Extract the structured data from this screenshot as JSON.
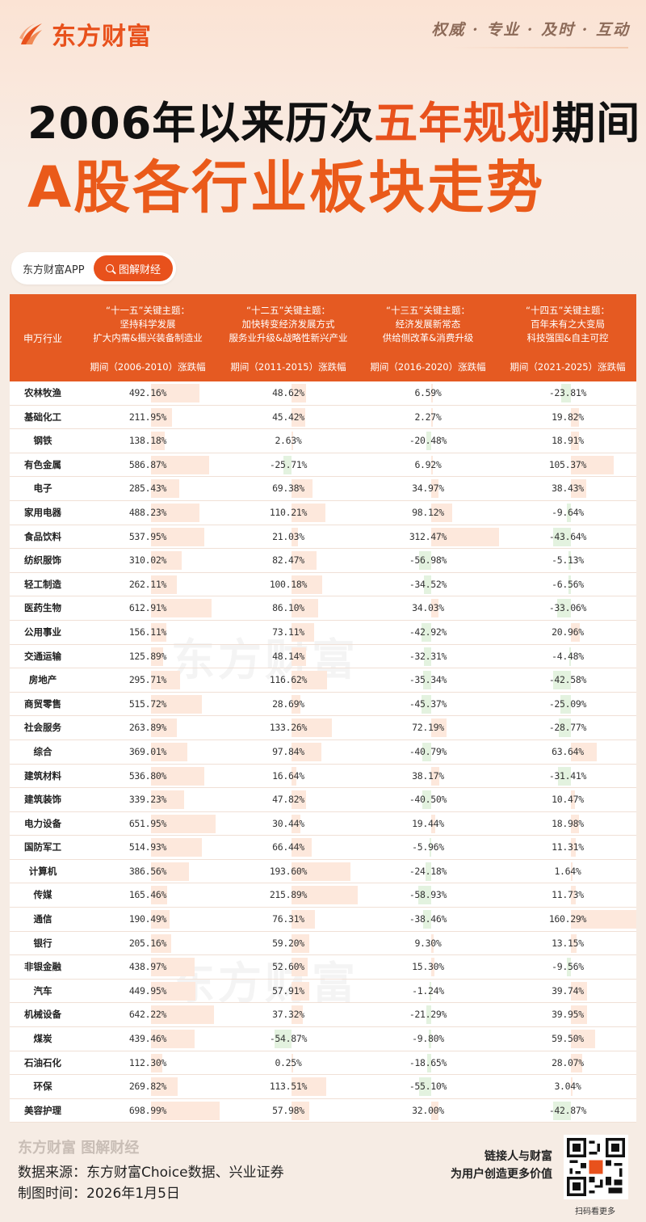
{
  "brand": {
    "name": "东方财富",
    "slogan": "权威 · 专业 · 及时 · 互动"
  },
  "title": {
    "line1_pre": "2006年以来历次",
    "line1_hl": "五年规划",
    "line1_post": "期间",
    "line2": "A股各行业板块走势"
  },
  "app": {
    "name": "东方财富APP",
    "tag": "图解财经"
  },
  "table": {
    "first_header": "申万行业",
    "plans": [
      {
        "theme1": "“十一五”关键主题：",
        "theme2": "坚持科学发展",
        "theme3": "扩大内需&振兴装备制造业",
        "period": "期间（2006-2010）涨跌幅"
      },
      {
        "theme1": "“十二五”关键主题：",
        "theme2": "加快转变经济发展方式",
        "theme3": "服务业升级&战略性新兴产业",
        "period": "期间（2011-2015）涨跌幅"
      },
      {
        "theme1": "“十三五”关键主题：",
        "theme2": "经济发展新常态",
        "theme3": "供给侧改革&消费升级",
        "period": "期间（2016-2020）涨跌幅"
      },
      {
        "theme1": "“十四五”关键主题：",
        "theme2": "百年未有之大变局",
        "theme3": "科技强国&自主可控",
        "period": "期间（2021-2025）涨跌幅"
      }
    ],
    "rows": [
      {
        "name": "农林牧渔",
        "v": [
          492.16,
          48.62,
          6.59,
          -23.81
        ],
        "t": [
          "492.16%",
          "48.62%",
          "6.59%",
          "-23.81%"
        ]
      },
      {
        "name": "基础化工",
        "v": [
          211.95,
          45.42,
          2.27,
          19.82
        ],
        "t": [
          "211.95%",
          "45.42%",
          "2.27%",
          "19.82%"
        ]
      },
      {
        "name": "钢铁",
        "v": [
          138.18,
          2.63,
          -20.48,
          18.91
        ],
        "t": [
          "138.18%",
          "2.63%",
          "-20.48%",
          "18.91%"
        ]
      },
      {
        "name": "有色金属",
        "v": [
          586.87,
          -25.71,
          6.92,
          105.37
        ],
        "t": [
          "586.87%",
          "-25.71%",
          "6.92%",
          "105.37%"
        ]
      },
      {
        "name": "电子",
        "v": [
          285.43,
          69.38,
          34.97,
          38.43
        ],
        "t": [
          "285.43%",
          "69.38%",
          "34.97%",
          "38.43%"
        ]
      },
      {
        "name": "家用电器",
        "v": [
          488.23,
          110.21,
          98.12,
          -9.64
        ],
        "t": [
          "488.23%",
          "110.21%",
          "98.12%",
          "-9.64%"
        ]
      },
      {
        "name": "食品饮料",
        "v": [
          537.95,
          21.03,
          312.47,
          -43.64
        ],
        "t": [
          "537.95%",
          "21.03%",
          "312.47%",
          "-43.64%"
        ]
      },
      {
        "name": "纺织服饰",
        "v": [
          310.02,
          82.47,
          -56.98,
          -5.13
        ],
        "t": [
          "310.02%",
          "82.47%",
          "-56.98%",
          "-5.13%"
        ]
      },
      {
        "name": "轻工制造",
        "v": [
          262.11,
          100.18,
          -34.52,
          -6.56
        ],
        "t": [
          "262.11%",
          "100.18%",
          "-34.52%",
          "-6.56%"
        ]
      },
      {
        "name": "医药生物",
        "v": [
          612.91,
          86.1,
          34.03,
          -33.06
        ],
        "t": [
          "612.91%",
          "86.10%",
          "34.03%",
          "-33.06%"
        ]
      },
      {
        "name": "公用事业",
        "v": [
          156.11,
          73.11,
          -42.92,
          20.96
        ],
        "t": [
          "156.11%",
          "73.11%",
          "-42.92%",
          "20.96%"
        ]
      },
      {
        "name": "交通运输",
        "v": [
          125.89,
          48.14,
          -32.31,
          -4.48
        ],
        "t": [
          "125.89%",
          "48.14%",
          "-32.31%",
          "-4.48%"
        ]
      },
      {
        "name": "房地产",
        "v": [
          295.71,
          116.62,
          -35.34,
          -42.58
        ],
        "t": [
          "295.71%",
          "116.62%",
          "-35.34%",
          "-42.58%"
        ]
      },
      {
        "name": "商贸零售",
        "v": [
          515.72,
          28.69,
          -45.37,
          -25.09
        ],
        "t": [
          "515.72%",
          "28.69%",
          "-45.37%",
          "-25.09%"
        ]
      },
      {
        "name": "社会服务",
        "v": [
          263.89,
          133.26,
          72.19,
          -28.77
        ],
        "t": [
          "263.89%",
          "133.26%",
          "72.19%",
          "-28.77%"
        ]
      },
      {
        "name": "综合",
        "v": [
          369.01,
          97.84,
          -40.79,
          63.64
        ],
        "t": [
          "369.01%",
          "97.84%",
          "-40.79%",
          "63.64%"
        ]
      },
      {
        "name": "建筑材料",
        "v": [
          536.8,
          16.64,
          38.17,
          -31.41
        ],
        "t": [
          "536.80%",
          "16.64%",
          "38.17%",
          "-31.41%"
        ]
      },
      {
        "name": "建筑装饰",
        "v": [
          339.23,
          47.82,
          -40.5,
          10.47
        ],
        "t": [
          "339.23%",
          "47.82%",
          "-40.50%",
          "10.47%"
        ]
      },
      {
        "name": "电力设备",
        "v": [
          651.95,
          30.44,
          19.44,
          18.98
        ],
        "t": [
          "651.95%",
          "30.44%",
          "19.44%",
          "18.98%"
        ]
      },
      {
        "name": "国防军工",
        "v": [
          514.93,
          66.44,
          -5.96,
          11.31
        ],
        "t": [
          "514.93%",
          "66.44%",
          "-5.96%",
          "11.31%"
        ]
      },
      {
        "name": "计算机",
        "v": [
          386.56,
          193.6,
          -24.18,
          1.64
        ],
        "t": [
          "386.56%",
          "193.60%",
          "-24.18%",
          "1.64%"
        ]
      },
      {
        "name": "传媒",
        "v": [
          165.46,
          215.89,
          -58.93,
          11.73
        ],
        "t": [
          "165.46%",
          "215.89%",
          "-58.93%",
          "11.73%"
        ]
      },
      {
        "name": "通信",
        "v": [
          190.49,
          76.31,
          -38.46,
          160.29
        ],
        "t": [
          "190.49%",
          "76.31%",
          "-38.46%",
          "160.29%"
        ]
      },
      {
        "name": "银行",
        "v": [
          205.16,
          59.2,
          9.3,
          13.15
        ],
        "t": [
          "205.16%",
          "59.20%",
          "9.30%",
          "13.15%"
        ]
      },
      {
        "name": "非银金融",
        "v": [
          438.97,
          52.6,
          15.3,
          -9.56
        ],
        "t": [
          "438.97%",
          "52.60%",
          "15.30%",
          "-9.56%"
        ]
      },
      {
        "name": "汽车",
        "v": [
          449.95,
          57.91,
          -1.24,
          39.74
        ],
        "t": [
          "449.95%",
          "57.91%",
          "-1.24%",
          "39.74%"
        ]
      },
      {
        "name": "机械设备",
        "v": [
          642.22,
          37.32,
          -21.29,
          39.95
        ],
        "t": [
          "642.22%",
          "37.32%",
          "-21.29%",
          "39.95%"
        ]
      },
      {
        "name": "煤炭",
        "v": [
          439.46,
          -54.87,
          -9.8,
          59.5
        ],
        "t": [
          "439.46%",
          "-54.87%",
          "-9.80%",
          "59.50%"
        ]
      },
      {
        "name": "石油石化",
        "v": [
          112.3,
          0.25,
          -18.65,
          28.07
        ],
        "t": [
          "112.30%",
          "0.25%",
          "-18.65%",
          "28.07%"
        ]
      },
      {
        "name": "环保",
        "v": [
          269.82,
          113.51,
          -55.1,
          3.04
        ],
        "t": [
          "269.82%",
          "113.51%",
          "-55.10%",
          "3.04%"
        ]
      },
      {
        "name": "美容护理",
        "v": [
          698.99,
          57.98,
          32.0,
          -42.87
        ],
        "t": [
          "698.99%",
          "57.98%",
          "32.00%",
          "-42.87%"
        ]
      }
    ]
  },
  "watermark": "东方财富",
  "footer": {
    "brand": "东方财富 图解财经",
    "source": "数据来源：东方财富Choice数据、兴业证券",
    "time": "制图时间：2026年1月5日",
    "slogan1": "链接人与财富",
    "slogan2": "为用户创造更多价值",
    "qr_caption": "扫码看更多"
  },
  "colors": {
    "accent": "#e8511c",
    "header_bg": "#e55a22",
    "pos_bar": "#fde8dc",
    "neg_bar": "#e3f2df"
  },
  "icons": {
    "logo": "flame-logo-icon",
    "search": "search-icon",
    "qr": "qr-code-icon"
  }
}
